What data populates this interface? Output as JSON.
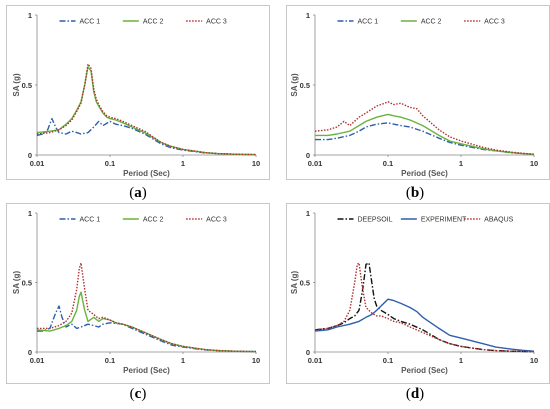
{
  "chart_data": [
    {
      "panel": "(a)",
      "caption_letter": "a",
      "type": "line",
      "xscale": "log",
      "xlim": [
        0.01,
        10
      ],
      "ylim": [
        0,
        1
      ],
      "xticks": [
        "0.01",
        "0.1",
        "1",
        "10"
      ],
      "yticks": [
        "0",
        "0.5",
        "1"
      ],
      "xlabel": "Period (Sec)",
      "ylabel": "SA (g)",
      "legend_position": "top-center",
      "series": [
        {
          "name": "ACC 1",
          "color": "#2e5fad",
          "dash": "6,2,1.5,2",
          "x": [
            0.01,
            0.012,
            0.014,
            0.016,
            0.018,
            0.02,
            0.025,
            0.03,
            0.035,
            0.04,
            0.05,
            0.06,
            0.07,
            0.08,
            0.1,
            0.12,
            0.15,
            0.2,
            0.3,
            0.5,
            0.7,
            1,
            2,
            3,
            5,
            7,
            10
          ],
          "y": [
            0.14,
            0.15,
            0.18,
            0.26,
            0.2,
            0.16,
            0.15,
            0.17,
            0.16,
            0.15,
            0.16,
            0.2,
            0.24,
            0.21,
            0.24,
            0.22,
            0.21,
            0.19,
            0.15,
            0.08,
            0.05,
            0.035,
            0.015,
            0.01,
            0.006,
            0.004,
            0.003
          ]
        },
        {
          "name": "ACC 2",
          "color": "#6ab23e",
          "dash": "",
          "x": [
            0.01,
            0.015,
            0.02,
            0.025,
            0.03,
            0.035,
            0.04,
            0.045,
            0.05,
            0.055,
            0.06,
            0.065,
            0.07,
            0.08,
            0.09,
            0.1,
            0.12,
            0.15,
            0.2,
            0.3,
            0.5,
            0.7,
            1,
            2,
            3,
            5,
            7,
            10
          ],
          "y": [
            0.16,
            0.17,
            0.18,
            0.22,
            0.26,
            0.32,
            0.38,
            0.5,
            0.63,
            0.6,
            0.45,
            0.38,
            0.35,
            0.3,
            0.27,
            0.26,
            0.25,
            0.23,
            0.2,
            0.16,
            0.09,
            0.06,
            0.04,
            0.017,
            0.01,
            0.006,
            0.004,
            0.003
          ]
        },
        {
          "name": "ACC 3",
          "color": "#b03030",
          "dash": "1.5,1.5",
          "x": [
            0.01,
            0.015,
            0.02,
            0.025,
            0.03,
            0.035,
            0.04,
            0.045,
            0.05,
            0.055,
            0.06,
            0.065,
            0.07,
            0.08,
            0.09,
            0.1,
            0.12,
            0.15,
            0.2,
            0.3,
            0.5,
            0.7,
            1,
            2,
            3,
            5,
            7,
            10
          ],
          "y": [
            0.15,
            0.16,
            0.18,
            0.21,
            0.25,
            0.31,
            0.37,
            0.5,
            0.65,
            0.62,
            0.47,
            0.4,
            0.36,
            0.31,
            0.28,
            0.27,
            0.26,
            0.24,
            0.21,
            0.17,
            0.09,
            0.06,
            0.04,
            0.017,
            0.01,
            0.006,
            0.004,
            0.003
          ]
        }
      ]
    },
    {
      "panel": "(b)",
      "caption_letter": "b",
      "type": "line",
      "xscale": "log",
      "xlim": [
        0.01,
        10
      ],
      "ylim": [
        0,
        1
      ],
      "xticks": [
        "0.01",
        "0.1",
        "1",
        "10"
      ],
      "yticks": [
        "0",
        "0.5",
        "1"
      ],
      "xlabel": "Period (Sec)",
      "ylabel": "SA (g)",
      "legend_position": "top-center",
      "series": [
        {
          "name": "ACC 1",
          "color": "#2e5fad",
          "dash": "6,2,1.5,2",
          "x": [
            0.01,
            0.015,
            0.02,
            0.03,
            0.04,
            0.05,
            0.07,
            0.1,
            0.12,
            0.15,
            0.2,
            0.3,
            0.5,
            0.7,
            1,
            2,
            3,
            5,
            7,
            10
          ],
          "y": [
            0.11,
            0.11,
            0.12,
            0.14,
            0.17,
            0.2,
            0.22,
            0.23,
            0.22,
            0.21,
            0.2,
            0.17,
            0.12,
            0.09,
            0.07,
            0.04,
            0.03,
            0.015,
            0.01,
            0.005
          ]
        },
        {
          "name": "ACC 2",
          "color": "#6ab23e",
          "dash": "",
          "x": [
            0.01,
            0.015,
            0.02,
            0.03,
            0.04,
            0.05,
            0.07,
            0.1,
            0.12,
            0.15,
            0.2,
            0.3,
            0.5,
            0.7,
            1,
            2,
            3,
            5,
            7,
            10
          ],
          "y": [
            0.14,
            0.14,
            0.15,
            0.17,
            0.21,
            0.24,
            0.27,
            0.29,
            0.28,
            0.27,
            0.25,
            0.21,
            0.14,
            0.1,
            0.08,
            0.045,
            0.03,
            0.017,
            0.01,
            0.005
          ]
        },
        {
          "name": "ACC 3",
          "color": "#b03030",
          "dash": "1.5,1.5",
          "x": [
            0.01,
            0.015,
            0.02,
            0.025,
            0.03,
            0.04,
            0.05,
            0.07,
            0.09,
            0.1,
            0.12,
            0.15,
            0.2,
            0.25,
            0.3,
            0.5,
            0.7,
            1,
            2,
            3,
            5,
            7,
            10
          ],
          "y": [
            0.17,
            0.18,
            0.2,
            0.24,
            0.21,
            0.27,
            0.3,
            0.35,
            0.37,
            0.38,
            0.36,
            0.37,
            0.34,
            0.33,
            0.28,
            0.18,
            0.13,
            0.1,
            0.055,
            0.035,
            0.02,
            0.012,
            0.006
          ]
        }
      ]
    },
    {
      "panel": "(c)",
      "caption_letter": "c",
      "type": "line",
      "xscale": "log",
      "xlim": [
        0.01,
        10
      ],
      "ylim": [
        0,
        1
      ],
      "xticks": [
        "0.01",
        "0.1",
        "1",
        "10"
      ],
      "yticks": [
        "0",
        "0.5",
        "1"
      ],
      "xlabel": "Period (Sec)",
      "ylabel": "SA (g)",
      "legend_position": "top-center",
      "series": [
        {
          "name": "ACC 1",
          "color": "#2e5fad",
          "dash": "6,2,1.5,2",
          "x": [
            0.01,
            0.012,
            0.015,
            0.018,
            0.02,
            0.022,
            0.025,
            0.03,
            0.035,
            0.04,
            0.05,
            0.06,
            0.07,
            0.08,
            0.1,
            0.15,
            0.2,
            0.3,
            0.5,
            0.7,
            1,
            2,
            3,
            5,
            7,
            10
          ],
          "y": [
            0.15,
            0.15,
            0.17,
            0.28,
            0.33,
            0.25,
            0.18,
            0.2,
            0.17,
            0.18,
            0.2,
            0.19,
            0.18,
            0.2,
            0.21,
            0.2,
            0.17,
            0.13,
            0.08,
            0.05,
            0.035,
            0.015,
            0.01,
            0.006,
            0.004,
            0.003
          ]
        },
        {
          "name": "ACC 2",
          "color": "#6ab23e",
          "dash": "",
          "x": [
            0.01,
            0.015,
            0.02,
            0.025,
            0.03,
            0.035,
            0.038,
            0.04,
            0.045,
            0.05,
            0.06,
            0.07,
            0.08,
            0.1,
            0.12,
            0.15,
            0.2,
            0.3,
            0.5,
            0.7,
            1,
            2,
            3,
            5,
            7,
            10
          ],
          "y": [
            0.16,
            0.15,
            0.17,
            0.19,
            0.22,
            0.3,
            0.4,
            0.43,
            0.3,
            0.22,
            0.25,
            0.22,
            0.24,
            0.23,
            0.21,
            0.2,
            0.18,
            0.14,
            0.09,
            0.06,
            0.04,
            0.017,
            0.01,
            0.006,
            0.004,
            0.003
          ]
        },
        {
          "name": "ACC 3",
          "color": "#b03030",
          "dash": "1.5,1.5",
          "x": [
            0.01,
            0.015,
            0.02,
            0.025,
            0.03,
            0.035,
            0.038,
            0.04,
            0.045,
            0.05,
            0.06,
            0.07,
            0.08,
            0.1,
            0.12,
            0.15,
            0.2,
            0.3,
            0.5,
            0.7,
            1,
            2,
            3,
            5,
            7,
            10
          ],
          "y": [
            0.17,
            0.17,
            0.19,
            0.22,
            0.28,
            0.45,
            0.6,
            0.64,
            0.45,
            0.3,
            0.27,
            0.24,
            0.25,
            0.23,
            0.21,
            0.2,
            0.18,
            0.14,
            0.09,
            0.06,
            0.04,
            0.017,
            0.01,
            0.006,
            0.004,
            0.003
          ]
        }
      ]
    },
    {
      "panel": "(d)",
      "caption_letter": "d",
      "type": "line",
      "xscale": "log",
      "xlim": [
        0.01,
        10
      ],
      "ylim": [
        0,
        1
      ],
      "xticks": [
        "0.01",
        "0.1",
        "1",
        "10"
      ],
      "yticks": [
        "0",
        "0.5",
        "1"
      ],
      "xlabel": "Period (Sec)",
      "ylabel": "SA (g)",
      "legend_position": "top-center",
      "series": [
        {
          "name": "DEEPSOIL",
          "color": "#111111",
          "dash": "6,2,1.5,2",
          "x": [
            0.01,
            0.015,
            0.02,
            0.025,
            0.03,
            0.035,
            0.04,
            0.045,
            0.05,
            0.055,
            0.06,
            0.065,
            0.07,
            0.08,
            0.1,
            0.12,
            0.15,
            0.2,
            0.3,
            0.5,
            0.7,
            1,
            2,
            3,
            5,
            7,
            10
          ],
          "y": [
            0.16,
            0.17,
            0.19,
            0.21,
            0.24,
            0.26,
            0.3,
            0.45,
            0.63,
            0.64,
            0.5,
            0.38,
            0.33,
            0.3,
            0.27,
            0.24,
            0.22,
            0.2,
            0.16,
            0.09,
            0.06,
            0.04,
            0.017,
            0.01,
            0.006,
            0.004,
            0.003
          ]
        },
        {
          "name": "EXPERIMENT",
          "color": "#2e5fad",
          "dash": "",
          "x": [
            0.01,
            0.015,
            0.02,
            0.03,
            0.04,
            0.05,
            0.06,
            0.07,
            0.08,
            0.1,
            0.12,
            0.15,
            0.2,
            0.25,
            0.3,
            0.5,
            0.7,
            1,
            2,
            3,
            5,
            7,
            10
          ],
          "y": [
            0.15,
            0.16,
            0.18,
            0.2,
            0.22,
            0.25,
            0.27,
            0.3,
            0.33,
            0.38,
            0.37,
            0.35,
            0.32,
            0.29,
            0.25,
            0.17,
            0.12,
            0.1,
            0.06,
            0.035,
            0.02,
            0.012,
            0.006
          ]
        },
        {
          "name": "ABAQUS",
          "color": "#b03030",
          "dash": "1.5,1.5",
          "x": [
            0.01,
            0.015,
            0.02,
            0.025,
            0.03,
            0.035,
            0.038,
            0.04,
            0.045,
            0.05,
            0.06,
            0.07,
            0.08,
            0.1,
            0.12,
            0.15,
            0.2,
            0.3,
            0.5,
            0.7,
            1,
            2,
            3,
            5,
            7,
            10
          ],
          "y": [
            0.16,
            0.17,
            0.19,
            0.22,
            0.3,
            0.5,
            0.63,
            0.64,
            0.45,
            0.32,
            0.28,
            0.26,
            0.26,
            0.24,
            0.22,
            0.21,
            0.18,
            0.14,
            0.09,
            0.06,
            0.04,
            0.017,
            0.01,
            0.006,
            0.004,
            0.003
          ]
        }
      ]
    }
  ]
}
